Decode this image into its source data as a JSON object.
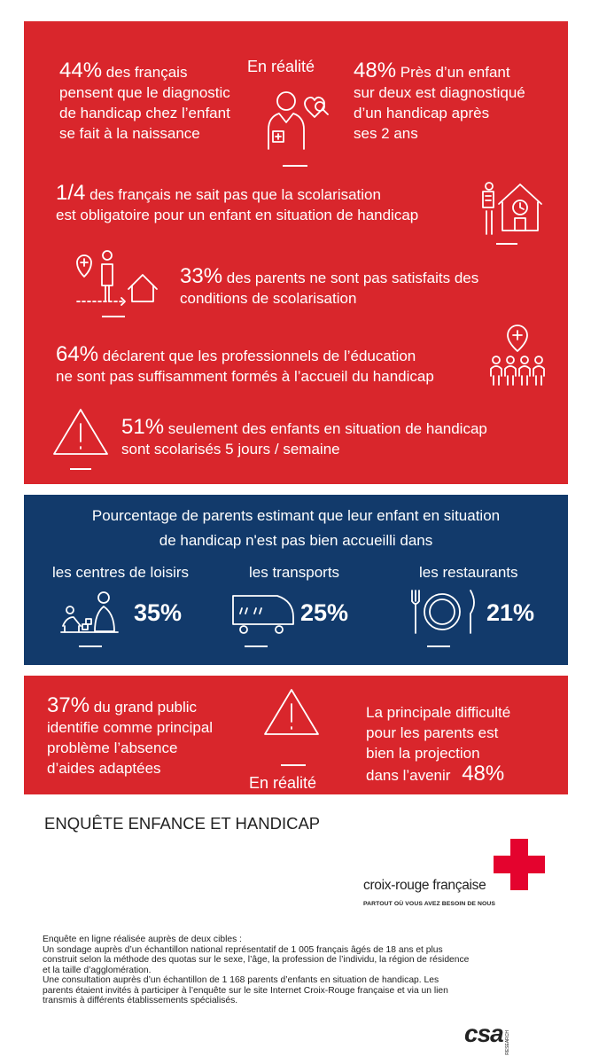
{
  "top_panel": {
    "block1": {
      "pct_left": "44%",
      "text_left_l1": "des français",
      "text_left_rest": [
        "pensent que le diagnostic",
        "de handicap chez l’enfant",
        "se fait à la naissance"
      ],
      "label_center": "En réalité",
      "pct_right": "48%",
      "text_right_l1": "Près d’un enfant",
      "text_right_rest": [
        "sur deux est diagnostiqué",
        "d’un handicap après",
        "ses 2 ans"
      ]
    },
    "block2": {
      "pct": "1/4",
      "line1": "des français ne sait pas que la scolarisation",
      "line2": "est obligatoire pour un enfant en situation de handicap"
    },
    "block3": {
      "pct": "33%",
      "line1": "des parents ne sont pas satisfaits des",
      "line2": "conditions de scolarisation"
    },
    "block4": {
      "pct": "64%",
      "line1": "déclarent que les professionnels de l’éducation",
      "line2": "ne sont pas suffisamment formés à l’accueil du handicap"
    },
    "block5": {
      "pct": "51%",
      "line1": "seulement des enfants en situation de handicap",
      "line2": "sont scolarisés 5 jours / semaine"
    }
  },
  "blue_panel": {
    "title_l1": "Pourcentage de parents estimant que leur enfant en situation",
    "title_l2": "de handicap n'est pas bien accueilli dans",
    "items": [
      {
        "label": "les centres de loisirs",
        "pct": "35%",
        "icon": "playing-children-icon"
      },
      {
        "label": "les transports",
        "pct": "25%",
        "icon": "train-icon"
      },
      {
        "label": "les restaurants",
        "pct": "21%",
        "icon": "plate-cutlery-icon"
      }
    ]
  },
  "bottom_panel": {
    "pct_left": "37%",
    "left_l1": "du grand public",
    "left_rest": [
      "identifie comme principal",
      "problème l’absence",
      "d’aides adaptées"
    ],
    "label_center": "En réalité",
    "right_lines": [
      "La principale difficulté",
      "pour les parents est",
      "bien la projection"
    ],
    "right_last": "dans l’avenir",
    "pct_right": "48%"
  },
  "survey_title": "ENQUÊTE ENFANCE ET HANDICAP",
  "logo": {
    "name": "croix-rouge française",
    "tagline": "PARTOUT OÙ VOUS AVEZ BESOIN DE NOUS"
  },
  "footnote": [
    "Enquête en ligne réalisée auprès de deux cibles :",
    "Un sondage auprès d’un échantillon national représentatif de 1 005 français âgés de 18 ans et plus",
    "construit selon la méthode des quotas sur le sexe, l’âge, la profession de l’individu, la région de résidence",
    "et la taille d’agglomération.",
    "Une consultation auprès d’un échantillon de 1 168 parents d’enfants en situation de handicap. Les",
    "parents étaient invités à participer à l’enquête sur le site Internet Croix-Rouge française et via un lien",
    "transmis à différents établissements spécialisés."
  ],
  "csa_logo": {
    "name": "csa",
    "sub": "RESEARCH"
  },
  "colors": {
    "red": "#d9262c",
    "blue": "#123a6b",
    "white": "#ffffff"
  }
}
